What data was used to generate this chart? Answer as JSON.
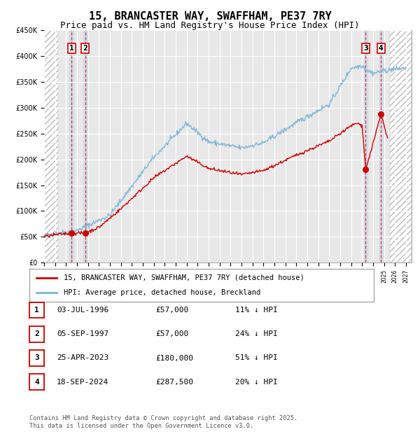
{
  "title": "15, BRANCASTER WAY, SWAFFHAM, PE37 7RY",
  "subtitle": "Price paid vs. HM Land Registry's House Price Index (HPI)",
  "ylim": [
    0,
    450000
  ],
  "yticks": [
    0,
    50000,
    100000,
    150000,
    200000,
    250000,
    300000,
    350000,
    400000,
    450000
  ],
  "ytick_labels": [
    "£0",
    "£50K",
    "£100K",
    "£150K",
    "£200K",
    "£250K",
    "£300K",
    "£350K",
    "£400K",
    "£450K"
  ],
  "xlim_start": 1994.0,
  "xlim_end": 2027.5,
  "transactions": [
    {
      "num": 1,
      "date": "03-JUL-1996",
      "price": 57000,
      "pct": "11%",
      "x": 1996.5
    },
    {
      "num": 2,
      "date": "05-SEP-1997",
      "price": 57000,
      "pct": "24%",
      "x": 1997.75
    },
    {
      "num": 3,
      "date": "25-APR-2023",
      "price": 180000,
      "pct": "51%",
      "x": 2023.32
    },
    {
      "num": 4,
      "date": "18-SEP-2024",
      "price": 287500,
      "pct": "20%",
      "x": 2024.72
    }
  ],
  "line_color_red": "#cc0000",
  "line_color_blue": "#7ab4d8",
  "bg_color": "#ffffff",
  "plot_bg": "#e8e8e8",
  "grid_color": "#ffffff",
  "legend_label_red": "15, BRANCASTER WAY, SWAFFHAM, PE37 7RY (detached house)",
  "legend_label_blue": "HPI: Average price, detached house, Breckland",
  "footer": "Contains HM Land Registry data © Crown copyright and database right 2025.\nThis data is licensed under the Open Government Licence v3.0.",
  "title_fontsize": 11,
  "subtitle_fontsize": 9,
  "tick_fontsize": 7,
  "legend_fontsize": 7.5,
  "table_fontsize": 8
}
